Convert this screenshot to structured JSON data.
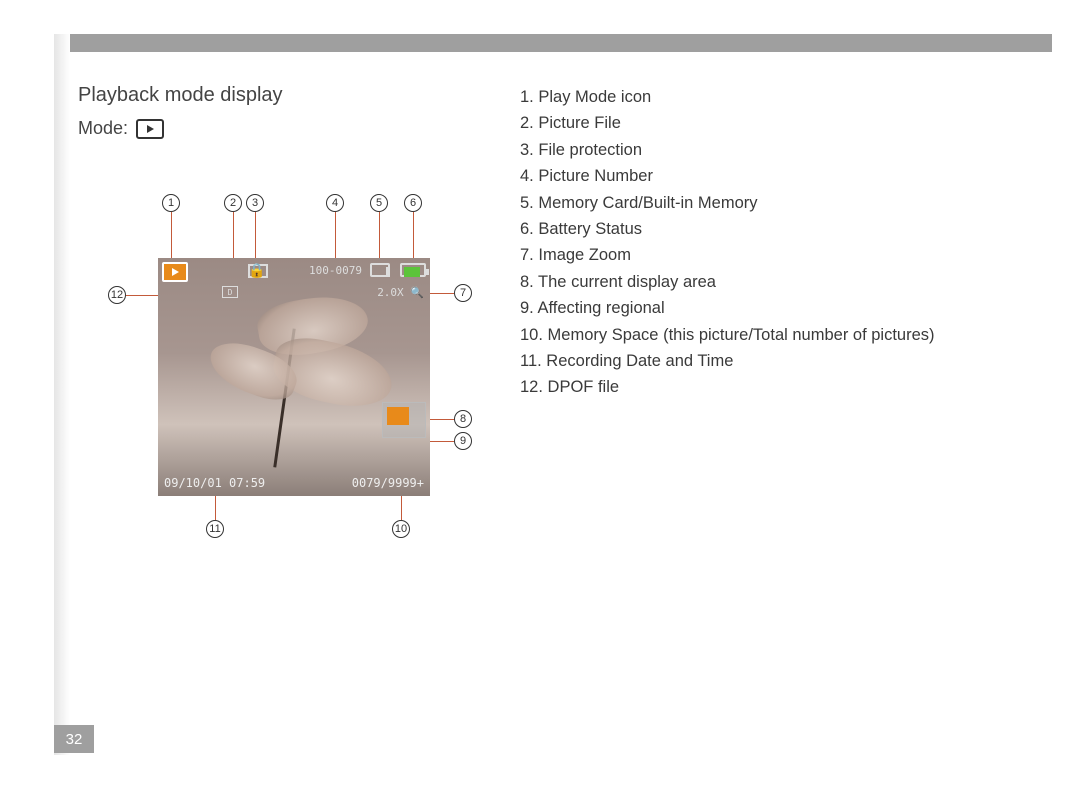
{
  "heading": "Playback mode display",
  "mode_label": "Mode:",
  "screen": {
    "play_icon_color": "#e88a1a",
    "dpof_label": "D",
    "picture_number": "100-0079",
    "zoom_text": "2.0X 🔍",
    "datetime": "09/10/01 07:59",
    "memory_space": "0079/9999+",
    "minimap_active_color": "#e88a1a",
    "battery_fill": "#5cc43a"
  },
  "callouts": {
    "c1": "1",
    "c2": "2",
    "c3": "3",
    "c4": "4",
    "c5": "5",
    "c6": "6",
    "c7": "7",
    "c8": "8",
    "c9": "9",
    "c10": "10",
    "c11": "11",
    "c12": "12"
  },
  "legend": [
    {
      "n": "1",
      "t": "Play Mode icon"
    },
    {
      "n": "2",
      "t": "Picture File"
    },
    {
      "n": "3",
      "t": "File protection"
    },
    {
      "n": "4",
      "t": "Picture Number"
    },
    {
      "n": "5",
      "t": "Memory Card/Built-in Memory"
    },
    {
      "n": "6",
      "t": "Battery Status"
    },
    {
      "n": "7",
      "t": "Image Zoom"
    },
    {
      "n": "8",
      "t": "The current display area"
    },
    {
      "n": "9",
      "t": "Affecting regional"
    },
    {
      "n": "10",
      "t": "Memory Space (this picture/Total number of pictures)"
    },
    {
      "n": "11",
      "t": "Recording Date and Time"
    },
    {
      "n": "12",
      "t": "DPOF file"
    }
  ],
  "page_number": "32",
  "colors": {
    "bar": "#9f9f9f",
    "leader": "#c35a3a",
    "text": "#3a3a3a"
  }
}
